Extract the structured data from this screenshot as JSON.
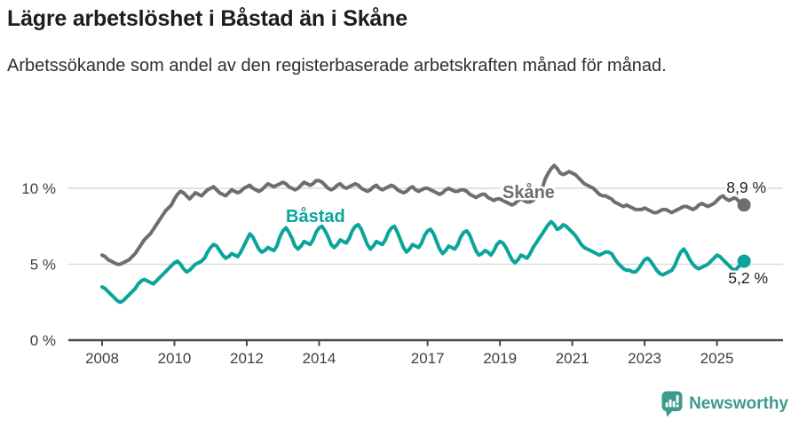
{
  "chart_data": {
    "type": "line",
    "title": "Lägre arbetslöshet i Båstad än i Skåne",
    "subtitle": "Arbetssökande som andel av den registerbaserade arbetskraften månad för månad.",
    "unit": "percent",
    "frequency": "monthly",
    "x_start": "2008-01",
    "x_end": "2025-10",
    "ylim": [
      0,
      12
    ],
    "grid": "horizontal",
    "legend_position": "inline-labels",
    "y_ticks": [
      {
        "value": 0,
        "label": "0 %"
      },
      {
        "value": 5,
        "label": "5 %"
      },
      {
        "value": 10,
        "label": "10 %"
      }
    ],
    "x_ticks": [
      {
        "year": 2008,
        "label": "2008"
      },
      {
        "year": 2010,
        "label": "2010"
      },
      {
        "year": 2012,
        "label": "2012"
      },
      {
        "year": 2014,
        "label": "2014"
      },
      {
        "year": 2017,
        "label": "2017"
      },
      {
        "year": 2019,
        "label": "2019"
      },
      {
        "year": 2021,
        "label": "2021"
      },
      {
        "year": 2023,
        "label": "2023"
      },
      {
        "year": 2025,
        "label": "2025"
      }
    ],
    "series": [
      {
        "name": "Skåne",
        "color": "#6e6e6e",
        "end_value": 8.9,
        "end_label": "8,9 %",
        "values": [
          5.6,
          5.5,
          5.3,
          5.2,
          5.1,
          5.0,
          5.0,
          5.1,
          5.2,
          5.3,
          5.5,
          5.7,
          6.0,
          6.3,
          6.6,
          6.8,
          7.0,
          7.3,
          7.6,
          7.9,
          8.2,
          8.5,
          8.7,
          8.9,
          9.3,
          9.6,
          9.8,
          9.7,
          9.5,
          9.3,
          9.5,
          9.7,
          9.6,
          9.5,
          9.7,
          9.9,
          10.0,
          10.1,
          9.9,
          9.7,
          9.6,
          9.5,
          9.7,
          9.9,
          9.8,
          9.7,
          9.8,
          10.0,
          10.1,
          10.2,
          10.0,
          9.9,
          9.8,
          9.9,
          10.1,
          10.3,
          10.2,
          10.1,
          10.2,
          10.3,
          10.4,
          10.3,
          10.1,
          10.0,
          9.9,
          10.0,
          10.2,
          10.4,
          10.3,
          10.2,
          10.3,
          10.5,
          10.5,
          10.4,
          10.2,
          10.0,
          9.9,
          10.0,
          10.2,
          10.3,
          10.1,
          10.0,
          10.1,
          10.2,
          10.3,
          10.2,
          10.0,
          9.9,
          9.8,
          9.9,
          10.1,
          10.2,
          10.0,
          9.9,
          10.0,
          10.1,
          10.2,
          10.1,
          9.9,
          9.8,
          9.7,
          9.8,
          10.0,
          10.1,
          9.9,
          9.8,
          9.9,
          10.0,
          10.0,
          9.9,
          9.8,
          9.7,
          9.6,
          9.7,
          9.9,
          10.0,
          9.9,
          9.8,
          9.8,
          9.9,
          9.9,
          9.8,
          9.6,
          9.5,
          9.4,
          9.5,
          9.6,
          9.6,
          9.4,
          9.3,
          9.2,
          9.3,
          9.3,
          9.2,
          9.1,
          9.0,
          8.9,
          9.0,
          9.2,
          9.3,
          9.2,
          9.1,
          9.1,
          9.2,
          9.4,
          9.6,
          10.0,
          10.6,
          11.0,
          11.3,
          11.5,
          11.3,
          11.0,
          10.9,
          11.0,
          11.1,
          11.0,
          10.9,
          10.7,
          10.5,
          10.3,
          10.2,
          10.1,
          10.0,
          9.8,
          9.6,
          9.5,
          9.5,
          9.4,
          9.3,
          9.1,
          9.0,
          8.9,
          8.8,
          8.9,
          8.8,
          8.7,
          8.6,
          8.6,
          8.6,
          8.7,
          8.6,
          8.5,
          8.4,
          8.4,
          8.5,
          8.6,
          8.6,
          8.5,
          8.4,
          8.5,
          8.6,
          8.7,
          8.8,
          8.8,
          8.7,
          8.6,
          8.7,
          8.9,
          9.0,
          8.9,
          8.8,
          8.9,
          9.0,
          9.2,
          9.4,
          9.5,
          9.3,
          9.2,
          9.3,
          9.4,
          9.2,
          9.0,
          8.9
        ]
      },
      {
        "name": "Båstad",
        "color": "#0aa49a",
        "end_value": 5.2,
        "end_label": "5,2 %",
        "values": [
          3.5,
          3.4,
          3.2,
          3.0,
          2.8,
          2.6,
          2.5,
          2.6,
          2.8,
          3.0,
          3.2,
          3.4,
          3.7,
          3.9,
          4.0,
          3.9,
          3.8,
          3.7,
          3.9,
          4.1,
          4.3,
          4.5,
          4.7,
          4.9,
          5.1,
          5.2,
          5.0,
          4.7,
          4.5,
          4.6,
          4.8,
          5.0,
          5.1,
          5.2,
          5.4,
          5.8,
          6.1,
          6.3,
          6.2,
          5.9,
          5.6,
          5.4,
          5.5,
          5.7,
          5.6,
          5.5,
          5.8,
          6.2,
          6.6,
          7.0,
          6.8,
          6.4,
          6.0,
          5.8,
          5.9,
          6.1,
          6.0,
          5.9,
          6.2,
          6.8,
          7.2,
          7.4,
          7.1,
          6.7,
          6.2,
          6.0,
          6.2,
          6.5,
          6.4,
          6.3,
          6.6,
          7.1,
          7.4,
          7.5,
          7.2,
          6.8,
          6.3,
          6.1,
          6.3,
          6.6,
          6.5,
          6.4,
          6.7,
          7.2,
          7.5,
          7.6,
          7.3,
          6.8,
          6.3,
          6.0,
          6.2,
          6.5,
          6.4,
          6.3,
          6.6,
          7.1,
          7.4,
          7.5,
          7.1,
          6.6,
          6.1,
          5.8,
          6.0,
          6.3,
          6.2,
          6.1,
          6.4,
          6.9,
          7.2,
          7.3,
          7.0,
          6.5,
          6.0,
          5.7,
          5.9,
          6.2,
          6.1,
          6.0,
          6.3,
          6.8,
          7.1,
          7.2,
          6.9,
          6.4,
          5.9,
          5.6,
          5.7,
          5.9,
          5.8,
          5.6,
          5.9,
          6.3,
          6.5,
          6.4,
          6.1,
          5.7,
          5.3,
          5.1,
          5.3,
          5.6,
          5.5,
          5.4,
          5.7,
          6.1,
          6.4,
          6.7,
          7.0,
          7.3,
          7.6,
          7.8,
          7.6,
          7.3,
          7.4,
          7.6,
          7.5,
          7.3,
          7.1,
          6.9,
          6.6,
          6.3,
          6.1,
          6.0,
          5.9,
          5.8,
          5.7,
          5.6,
          5.7,
          5.8,
          5.8,
          5.7,
          5.4,
          5.1,
          4.9,
          4.7,
          4.6,
          4.6,
          4.5,
          4.5,
          4.7,
          5.0,
          5.3,
          5.4,
          5.2,
          4.9,
          4.6,
          4.4,
          4.3,
          4.4,
          4.5,
          4.6,
          4.9,
          5.4,
          5.8,
          6.0,
          5.7,
          5.3,
          5.0,
          4.8,
          4.7,
          4.8,
          4.9,
          5.0,
          5.2,
          5.4,
          5.6,
          5.5,
          5.3,
          5.1,
          4.9,
          4.7,
          4.6,
          4.8,
          5.0,
          5.2
        ]
      }
    ],
    "colors": {
      "grid": "#d9d9d9",
      "axis": "#474747",
      "tick_text": "#3f3f3f",
      "value_label_text": "#1f1f1f"
    }
  },
  "footer": {
    "brand": "Newsworthy",
    "brand_color": "#3f998c"
  }
}
